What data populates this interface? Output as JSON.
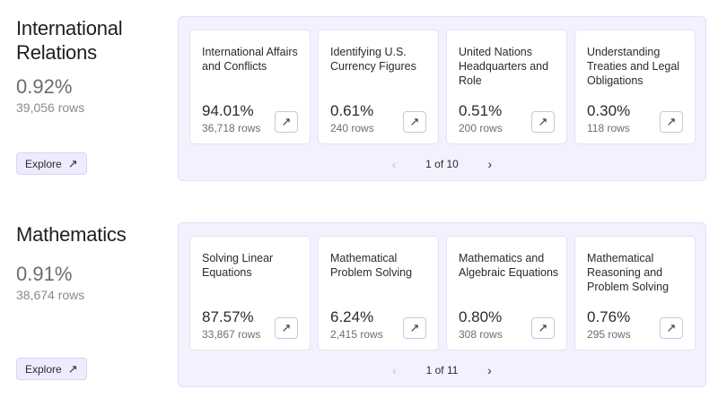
{
  "sections": [
    {
      "title_lines": [
        "International",
        "Relations"
      ],
      "percent": "0.92%",
      "rows": "39,056 rows",
      "explore_label": "Explore",
      "explore_icon": "↗",
      "cards": [
        {
          "title": "International Affairs and Conflicts",
          "percent": "94.01%",
          "rows": "36,718 rows"
        },
        {
          "title": "Identifying U.S. Currency Figures",
          "percent": "0.61%",
          "rows": "240 rows"
        },
        {
          "title": "United Nations Headquarters and Role",
          "percent": "0.51%",
          "rows": "200 rows"
        },
        {
          "title": "Understanding Treaties and Legal Obligations",
          "percent": "0.30%",
          "rows": "118 rows"
        }
      ],
      "pager": {
        "prev": "‹",
        "label": "1 of 10",
        "next": "›"
      }
    },
    {
      "title_lines": [
        "Mathematics",
        ""
      ],
      "percent": "0.91%",
      "rows": "38,674 rows",
      "explore_label": "Explore",
      "explore_icon": "↗",
      "cards": [
        {
          "title": "Solving Linear Equations",
          "percent": "87.57%",
          "rows": "33,867 rows"
        },
        {
          "title": "Mathematical Problem Solving",
          "percent": "6.24%",
          "rows": "2,415 rows"
        },
        {
          "title": "Mathematics and Algebraic Equations",
          "percent": "0.80%",
          "rows": "308 rows"
        },
        {
          "title": "Mathematical Reasoning and Problem Solving",
          "percent": "0.76%",
          "rows": "295 rows"
        }
      ],
      "pager": {
        "prev": "‹",
        "label": "1 of 11",
        "next": "›"
      }
    }
  ],
  "card_button_icon": "↗"
}
